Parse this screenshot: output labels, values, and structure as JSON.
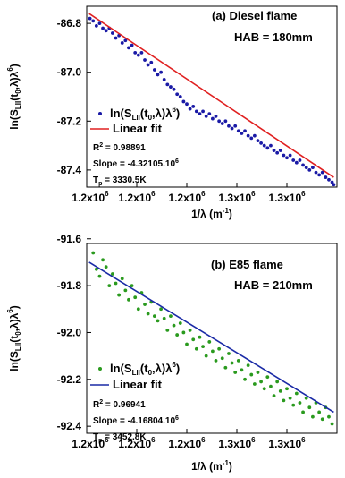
{
  "chart_data": [
    {
      "type": "scatter",
      "title": "(a)  Diesel flame",
      "subtitle": "HAB = 180mm",
      "xlabel": "1/λ (m⁻¹)",
      "ylabel": "ln(S_LII(t0,λ)λ⁶)",
      "x_range": [
        1.49,
        1.335
      ],
      "ylim": [
        -87.47,
        -86.73
      ],
      "x_ticks": [
        1.49,
        1.459,
        1.428,
        1.397,
        1.366,
        1.335
      ],
      "x_tick_label": "1.2x10⁶",
      "x_tick_labels": [
        "1.2x10",
        "1.2x10",
        "1.2x10",
        "1.3x10",
        "1.3x10"
      ],
      "x_tick_exponent": "6",
      "y_ticks": [
        -86.8,
        -87.0,
        -87.2,
        -87.4
      ],
      "y_tick_labels": [
        "-86.8",
        "-87.0",
        "-87.2",
        "-87.4"
      ],
      "grid": false,
      "series": [
        {
          "name": "ln(S_LII(t0,λ)λ⁶)",
          "kind": "points",
          "color": "#1a1aa6",
          "x": [
            1.488,
            1.486,
            1.484,
            1.482,
            1.48,
            1.478,
            1.476,
            1.474,
            1.472,
            1.47,
            1.468,
            1.466,
            1.464,
            1.462,
            1.46,
            1.458,
            1.456,
            1.454,
            1.452,
            1.45,
            1.448,
            1.446,
            1.444,
            1.442,
            1.44,
            1.438,
            1.436,
            1.434,
            1.432,
            1.43,
            1.428,
            1.426,
            1.424,
            1.422,
            1.42,
            1.418,
            1.416,
            1.414,
            1.412,
            1.41,
            1.408,
            1.406,
            1.404,
            1.402,
            1.4,
            1.398,
            1.396,
            1.394,
            1.392,
            1.39,
            1.388,
            1.386,
            1.384,
            1.382,
            1.38,
            1.378,
            1.376,
            1.374,
            1.372,
            1.37,
            1.368,
            1.366,
            1.364,
            1.362,
            1.36,
            1.358,
            1.356,
            1.354,
            1.352,
            1.35,
            1.348,
            1.346,
            1.344,
            1.342,
            1.34,
            1.338,
            1.337
          ],
          "y": [
            -86.78,
            -86.79,
            -86.81,
            -86.8,
            -86.82,
            -86.83,
            -86.82,
            -86.84,
            -86.86,
            -86.85,
            -86.88,
            -86.87,
            -86.9,
            -86.89,
            -86.92,
            -86.93,
            -86.92,
            -86.95,
            -86.97,
            -86.96,
            -86.99,
            -87.01,
            -87.0,
            -87.03,
            -87.05,
            -87.06,
            -87.07,
            -87.09,
            -87.1,
            -87.12,
            -87.13,
            -87.15,
            -87.14,
            -87.16,
            -87.17,
            -87.16,
            -87.18,
            -87.17,
            -87.19,
            -87.18,
            -87.2,
            -87.21,
            -87.2,
            -87.22,
            -87.23,
            -87.22,
            -87.24,
            -87.25,
            -87.24,
            -87.26,
            -87.27,
            -87.26,
            -87.28,
            -87.29,
            -87.3,
            -87.31,
            -87.3,
            -87.32,
            -87.33,
            -87.32,
            -87.34,
            -87.35,
            -87.34,
            -87.36,
            -87.37,
            -87.36,
            -87.38,
            -87.39,
            -87.4,
            -87.39,
            -87.41,
            -87.42,
            -87.41,
            -87.43,
            -87.44,
            -87.45,
            -87.46
          ]
        },
        {
          "name": "Linear fit",
          "kind": "line",
          "color": "#e02020",
          "x": [
            1.4885,
            1.337
          ],
          "y": [
            -86.76,
            -87.43
          ]
        }
      ],
      "annotations": [
        "R² = 0.98891",
        "Slope = -4.32105.10⁶",
        "Tp = 3330.5K"
      ]
    },
    {
      "type": "scatter",
      "title": "(b)  E85 flame",
      "subtitle": "HAB = 210mm",
      "xlabel": "1/λ (m⁻¹)",
      "ylabel": "ln(S_LII(t0,λ)λ⁶)",
      "x_range": [
        1.49,
        1.335
      ],
      "ylim": [
        -92.43,
        -91.62
      ],
      "x_ticks": [
        1.49,
        1.459,
        1.428,
        1.397,
        1.366,
        1.335
      ],
      "x_tick_label": "1.2x10⁶",
      "x_tick_labels": [
        "1.2x10",
        "1.2x10",
        "1.2x10",
        "1.3x10",
        "1.3x10"
      ],
      "x_tick_exponent": "6",
      "y_ticks": [
        -91.6,
        -91.8,
        -92.0,
        -92.2,
        -92.4
      ],
      "y_tick_labels": [
        "-91.6",
        "-91.8",
        "-92.0",
        "-92.2",
        "-92.4"
      ],
      "grid": false,
      "series": [
        {
          "name": "ln(S_LII(t0,λ)λ⁶)",
          "kind": "points",
          "color": "#2a9a1e",
          "x": [
            1.486,
            1.484,
            1.482,
            1.48,
            1.478,
            1.476,
            1.474,
            1.472,
            1.47,
            1.468,
            1.466,
            1.464,
            1.462,
            1.46,
            1.458,
            1.456,
            1.454,
            1.452,
            1.45,
            1.448,
            1.446,
            1.444,
            1.442,
            1.44,
            1.438,
            1.436,
            1.434,
            1.432,
            1.43,
            1.428,
            1.426,
            1.424,
            1.422,
            1.42,
            1.418,
            1.416,
            1.414,
            1.412,
            1.41,
            1.408,
            1.406,
            1.404,
            1.402,
            1.4,
            1.398,
            1.396,
            1.394,
            1.392,
            1.39,
            1.388,
            1.386,
            1.384,
            1.382,
            1.38,
            1.378,
            1.376,
            1.374,
            1.372,
            1.37,
            1.368,
            1.366,
            1.364,
            1.362,
            1.36,
            1.358,
            1.356,
            1.354,
            1.352,
            1.35,
            1.348,
            1.346,
            1.344,
            1.342,
            1.34,
            1.338
          ],
          "y": [
            -91.66,
            -91.73,
            -91.76,
            -91.69,
            -91.72,
            -91.8,
            -91.75,
            -91.79,
            -91.84,
            -91.77,
            -91.82,
            -91.86,
            -91.8,
            -91.85,
            -91.9,
            -91.83,
            -91.88,
            -91.92,
            -91.87,
            -91.93,
            -91.95,
            -91.9,
            -91.94,
            -91.99,
            -91.93,
            -91.97,
            -92.01,
            -91.96,
            -92.0,
            -92.05,
            -91.99,
            -92.03,
            -92.07,
            -92.02,
            -92.06,
            -92.1,
            -92.04,
            -92.08,
            -92.12,
            -92.07,
            -92.11,
            -92.15,
            -92.09,
            -92.13,
            -92.17,
            -92.12,
            -92.16,
            -92.2,
            -92.14,
            -92.18,
            -92.22,
            -92.17,
            -92.21,
            -92.24,
            -92.19,
            -92.23,
            -92.27,
            -92.21,
            -92.25,
            -92.29,
            -92.24,
            -92.28,
            -92.31,
            -92.26,
            -92.3,
            -92.34,
            -92.28,
            -92.32,
            -92.36,
            -92.3,
            -92.34,
            -92.37,
            -92.32,
            -92.36,
            -92.39
          ]
        },
        {
          "name": "Linear fit",
          "kind": "line",
          "color": "#1a2aa6",
          "x": [
            1.4885,
            1.337
          ],
          "y": [
            -91.7,
            -92.34
          ]
        }
      ],
      "annotations": [
        "R² = 0.96941",
        "Slope = -4.16804.10⁶",
        "Tp = 3452.8K"
      ]
    }
  ]
}
